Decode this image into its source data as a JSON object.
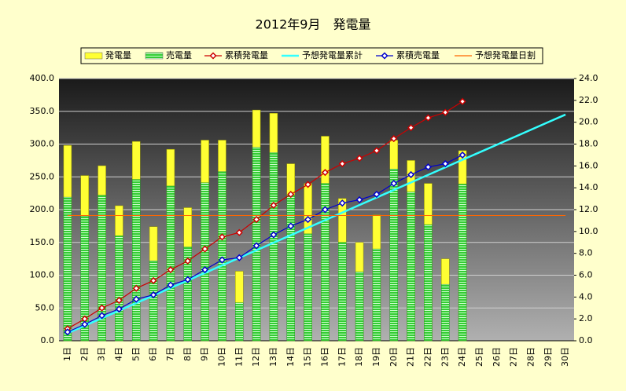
{
  "chart_data": {
    "type": "bar",
    "title": "2012年9月　発電量",
    "categories": [
      "1日",
      "2日",
      "3日",
      "4日",
      "5日",
      "6日",
      "7日",
      "8日",
      "9日",
      "10日",
      "11日",
      "12日",
      "13日",
      "14日",
      "15日",
      "16日",
      "17日",
      "18日",
      "19日",
      "20日",
      "21日",
      "22日",
      "23日",
      "24日",
      "25日",
      "26日",
      "27日",
      "28日",
      "29日",
      "30日"
    ],
    "ylim": [
      0,
      400
    ],
    "yticks": [
      {
        "value": 0,
        "label": "0.0"
      },
      {
        "value": 50,
        "label": "50.0"
      },
      {
        "value": 100,
        "label": "100.0"
      },
      {
        "value": 150,
        "label": "150.0"
      },
      {
        "value": 200,
        "label": "200.0"
      },
      {
        "value": 250,
        "label": "250.0"
      },
      {
        "value": 300,
        "label": "300.0"
      },
      {
        "value": 350,
        "label": "350.0"
      },
      {
        "value": 400,
        "label": "400.0"
      }
    ],
    "y2lim": [
      0,
      24
    ],
    "y2ticks": [
      {
        "value": 0,
        "label": "0.0"
      },
      {
        "value": 2,
        "label": "2.0"
      },
      {
        "value": 4,
        "label": "4.0"
      },
      {
        "value": 6,
        "label": "6.0"
      },
      {
        "value": 8,
        "label": "8.0"
      },
      {
        "value": 10,
        "label": "10.0"
      },
      {
        "value": 12,
        "label": "12.0"
      },
      {
        "value": 14,
        "label": "14.0"
      },
      {
        "value": 16,
        "label": "16.0"
      },
      {
        "value": 18,
        "label": "18.0"
      },
      {
        "value": 20,
        "label": "20.0"
      },
      {
        "value": 22,
        "label": "22.0"
      },
      {
        "value": 24,
        "label": "24.0"
      }
    ],
    "grid": true,
    "series": [
      {
        "name": "発電量",
        "type": "bar",
        "color": "#ffff33",
        "values": [
          298,
          252,
          267,
          206,
          304,
          174,
          292,
          203,
          306,
          306,
          106,
          352,
          347,
          270,
          240,
          312,
          217,
          150,
          192,
          306,
          275,
          240,
          125,
          290,
          null,
          null,
          null,
          null,
          null,
          null
        ]
      },
      {
        "name": "売電量",
        "type": "bar",
        "color": "#33cc33",
        "values": [
          219,
          190,
          222,
          160,
          246,
          122,
          236,
          143,
          241,
          258,
          58,
          295,
          287,
          222,
          163,
          240,
          150,
          105,
          140,
          262,
          227,
          177,
          86,
          239,
          null,
          null,
          null,
          null,
          null,
          null
        ]
      },
      {
        "name": "累積発電量",
        "type": "line",
        "marker": true,
        "axis": "y2",
        "color": "#cc0000",
        "values": [
          1.1,
          2.0,
          3.0,
          3.7,
          4.8,
          5.5,
          6.5,
          7.3,
          8.4,
          9.5,
          9.9,
          11.1,
          12.4,
          13.4,
          14.3,
          15.4,
          16.2,
          16.7,
          17.4,
          18.5,
          19.5,
          20.4,
          20.9,
          21.9,
          null,
          null,
          null,
          null,
          null,
          null
        ]
      },
      {
        "name": "予想発電量累計",
        "type": "line",
        "marker": false,
        "axis": "y2",
        "color": "#33ffff",
        "values": [
          0.69,
          1.38,
          2.07,
          2.76,
          3.45,
          4.14,
          4.83,
          5.52,
          6.21,
          6.9,
          7.59,
          8.28,
          8.97,
          9.66,
          10.35,
          11.04,
          11.73,
          12.42,
          13.11,
          13.8,
          14.49,
          15.18,
          15.87,
          16.56,
          17.25,
          17.94,
          18.63,
          19.32,
          20.01,
          20.7
        ]
      },
      {
        "name": "累積売電量",
        "type": "line",
        "marker": true,
        "axis": "y2",
        "color": "#0000cc",
        "values": [
          0.8,
          1.5,
          2.3,
          2.9,
          3.8,
          4.2,
          5.1,
          5.6,
          6.5,
          7.4,
          7.6,
          8.7,
          9.7,
          10.5,
          11.1,
          12.0,
          12.6,
          12.9,
          13.4,
          14.4,
          15.2,
          15.9,
          16.2,
          17.0,
          null,
          null,
          null,
          null,
          null,
          null
        ]
      },
      {
        "name": "予想発電量日割",
        "type": "line",
        "marker": false,
        "color": "#ff6600",
        "values": [
          191,
          191,
          191,
          191,
          191,
          191,
          191,
          191,
          191,
          191,
          191,
          191,
          191,
          191,
          191,
          191,
          191,
          191,
          191,
          191,
          191,
          191,
          191,
          191,
          191,
          191,
          191,
          191,
          191,
          191
        ]
      }
    ]
  }
}
